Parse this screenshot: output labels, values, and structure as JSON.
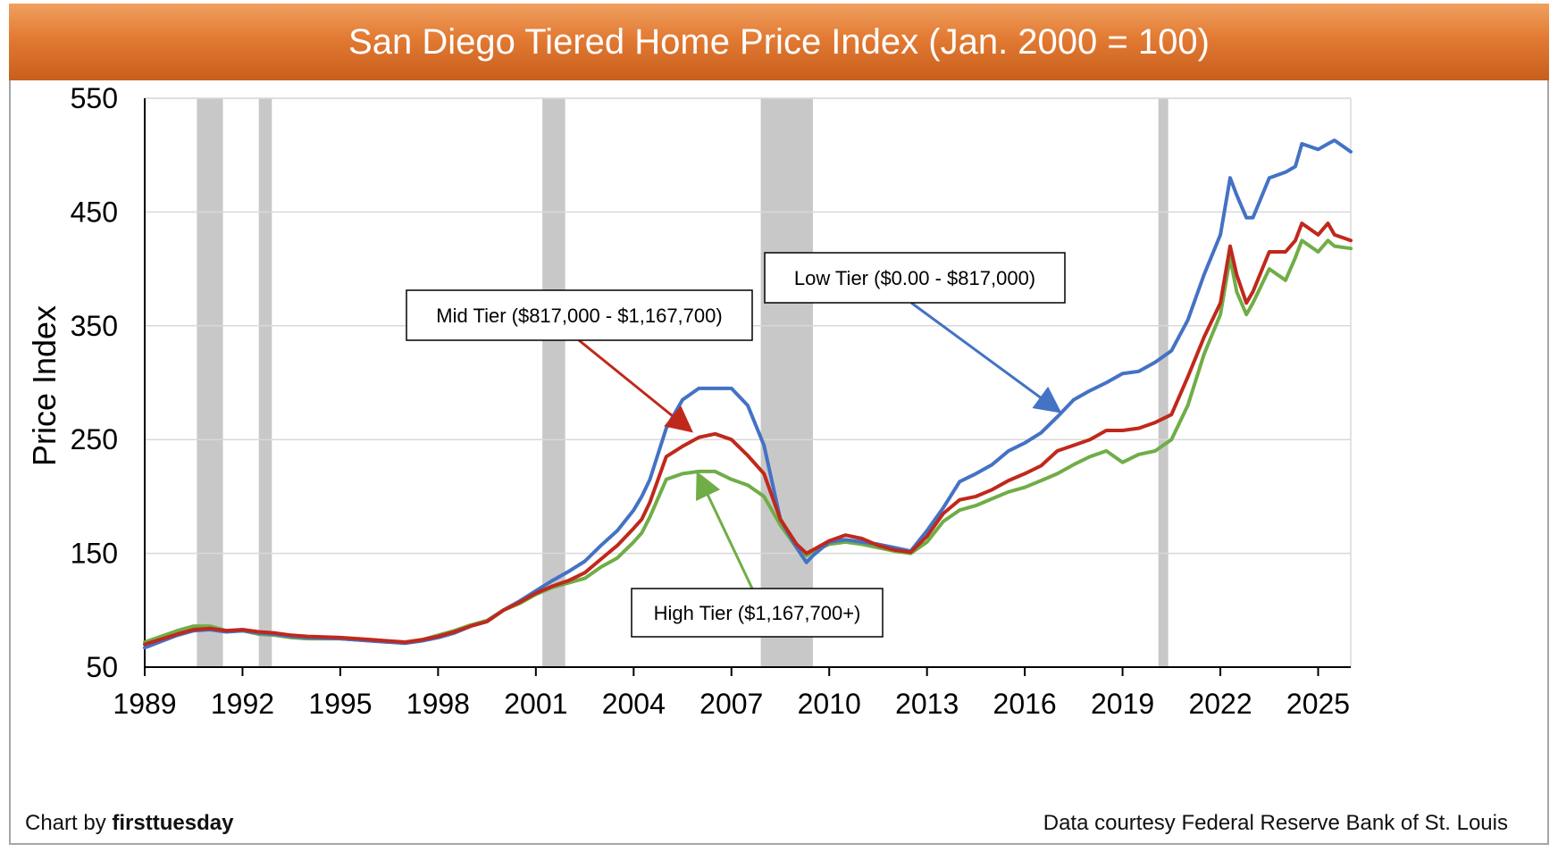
{
  "header": {
    "title": "San Diego Tiered Home Price Index (Jan. 2000 = 100)"
  },
  "credits": {
    "chart_by_prefix": "Chart by ",
    "chart_by_brand": "firsttuesday",
    "data_source": "Data courtesy Federal Reserve Bank of St. Louis"
  },
  "colors": {
    "low": "#4472c4",
    "mid": "#c0281c",
    "high": "#70ad47",
    "recession": "#c8c8c8",
    "grid": "#d9d9d9"
  },
  "chart_data": {
    "type": "line",
    "title": "San Diego Tiered Home Price Index (Jan. 2000 = 100)",
    "xlabel": "",
    "ylabel": "Price Index",
    "xlim": [
      1989,
      2026
    ],
    "ylim": [
      50,
      550
    ],
    "yticks": [
      50,
      150,
      250,
      350,
      450,
      550
    ],
    "xticks": [
      1989,
      1992,
      1995,
      1998,
      2001,
      2004,
      2007,
      2010,
      2013,
      2016,
      2019,
      2022,
      2025
    ],
    "grid": true,
    "recessions": [
      [
        1990.6,
        1991.4
      ],
      [
        1992.5,
        1992.9
      ],
      [
        2001.2,
        2001.9
      ],
      [
        2007.9,
        2009.5
      ],
      [
        2020.1,
        2020.4
      ]
    ],
    "annotations": [
      {
        "series": "Low Tier",
        "text": "Low Tier ($0.00 - $817,000)",
        "target": [
          2017.0,
          276
        ]
      },
      {
        "series": "Mid Tier",
        "text": "Mid Tier ($817,000 - $1,167,700)",
        "target": [
          2005.7,
          259
        ]
      },
      {
        "series": "High Tier",
        "text": "High Tier ($1,167,700+)",
        "target": [
          2006.0,
          218
        ]
      }
    ],
    "series": [
      {
        "key": "low",
        "x": [
          1989,
          1990,
          1990.5,
          1991,
          1991.5,
          1992,
          1992.5,
          1993,
          1993.5,
          1994,
          1995,
          1996,
          1996.5,
          1997,
          1997.5,
          1998,
          1998.5,
          1999,
          1999.5,
          2000,
          2000.5,
          2001,
          2001.5,
          2002,
          2002.5,
          2003,
          2003.5,
          2004,
          2004.25,
          2004.5,
          2005,
          2005.5,
          2006,
          2006.5,
          2007,
          2007.5,
          2008,
          2008.5,
          2009,
          2009.3,
          2009.5,
          2010,
          2010.5,
          2011,
          2011.5,
          2012,
          2012.5,
          2013,
          2013.5,
          2014,
          2014.5,
          2015,
          2015.5,
          2016,
          2016.5,
          2017,
          2017.5,
          2018,
          2018.5,
          2019,
          2019.5,
          2020,
          2020.5,
          2021,
          2021.5,
          2022,
          2022.3,
          2022.5,
          2022.8,
          2023,
          2023.5,
          2024,
          2024.3,
          2024.5,
          2025,
          2025.3,
          2025.5,
          2026
        ],
        "y": [
          67,
          78,
          82,
          83,
          81,
          82,
          80,
          79,
          77,
          76,
          75,
          73,
          72,
          71,
          73,
          76,
          80,
          86,
          90,
          100,
          108,
          117,
          126,
          134,
          143,
          157,
          170,
          188,
          200,
          215,
          260,
          285,
          295,
          295,
          295,
          280,
          245,
          180,
          155,
          142,
          148,
          160,
          162,
          160,
          158,
          155,
          152,
          170,
          190,
          213,
          220,
          228,
          240,
          247,
          256,
          270,
          285,
          293,
          300,
          308,
          310,
          318,
          328,
          355,
          395,
          430,
          480,
          465,
          445,
          445,
          480,
          485,
          490,
          510,
          505,
          510,
          513,
          503
        ]
      },
      {
        "key": "mid",
        "x": [
          1989,
          1990,
          1990.5,
          1991,
          1991.5,
          1992,
          1992.5,
          1993,
          1993.5,
          1994,
          1995,
          1996,
          1996.5,
          1997,
          1997.5,
          1998,
          1998.5,
          1999,
          1999.5,
          2000,
          2000.5,
          2001,
          2001.5,
          2002,
          2002.5,
          2003,
          2003.5,
          2004,
          2004.25,
          2004.5,
          2005,
          2005.5,
          2006,
          2006.5,
          2007,
          2007.5,
          2008,
          2008.5,
          2009,
          2009.3,
          2009.5,
          2010,
          2010.5,
          2011,
          2011.5,
          2012,
          2012.5,
          2013,
          2013.5,
          2014,
          2014.5,
          2015,
          2015.5,
          2016,
          2016.5,
          2017,
          2017.5,
          2018,
          2018.5,
          2019,
          2019.5,
          2020,
          2020.5,
          2021,
          2021.5,
          2022,
          2022.3,
          2022.5,
          2022.8,
          2023,
          2023.5,
          2024,
          2024.3,
          2024.5,
          2025,
          2025.3,
          2025.5,
          2026
        ],
        "y": [
          70,
          79,
          83,
          84,
          82,
          83,
          81,
          80,
          78,
          77,
          76,
          74,
          73,
          72,
          74,
          77,
          81,
          86,
          90,
          100,
          107,
          115,
          121,
          126,
          133,
          145,
          157,
          172,
          180,
          195,
          235,
          244,
          252,
          255,
          250,
          236,
          220,
          180,
          158,
          150,
          153,
          161,
          166,
          163,
          157,
          153,
          151,
          165,
          185,
          197,
          200,
          206,
          214,
          220,
          227,
          240,
          245,
          250,
          258,
          258,
          260,
          265,
          272,
          305,
          340,
          370,
          420,
          395,
          370,
          380,
          415,
          415,
          425,
          440,
          430,
          440,
          430,
          425
        ]
      },
      {
        "key": "high",
        "x": [
          1989,
          1990,
          1990.5,
          1991,
          1991.5,
          1992,
          1992.5,
          1993,
          1993.5,
          1994,
          1995,
          1996,
          1996.5,
          1997,
          1997.5,
          1998,
          1998.5,
          1999,
          1999.5,
          2000,
          2000.5,
          2001,
          2001.5,
          2002,
          2002.5,
          2003,
          2003.5,
          2004,
          2004.25,
          2004.5,
          2005,
          2005.5,
          2006,
          2006.5,
          2007,
          2007.5,
          2008,
          2008.5,
          2009,
          2009.3,
          2009.5,
          2010,
          2010.5,
          2011,
          2011.5,
          2012,
          2012.5,
          2013,
          2013.5,
          2014,
          2014.5,
          2015,
          2015.5,
          2016,
          2016.5,
          2017,
          2017.5,
          2018,
          2018.5,
          2019,
          2019.5,
          2020,
          2020.5,
          2021,
          2021.5,
          2022,
          2022.3,
          2022.5,
          2022.8,
          2023,
          2023.5,
          2024,
          2024.3,
          2024.5,
          2025,
          2025.3,
          2025.5,
          2026
        ],
        "y": [
          72,
          82,
          86,
          86,
          82,
          82,
          79,
          78,
          76,
          75,
          75,
          73,
          72,
          72,
          74,
          78,
          82,
          87,
          91,
          100,
          106,
          114,
          120,
          124,
          128,
          138,
          146,
          160,
          168,
          182,
          215,
          220,
          222,
          222,
          215,
          210,
          200,
          175,
          155,
          148,
          152,
          158,
          160,
          158,
          155,
          152,
          150,
          160,
          178,
          188,
          192,
          198,
          204,
          208,
          214,
          220,
          228,
          235,
          240,
          230,
          237,
          240,
          250,
          280,
          325,
          360,
          410,
          380,
          360,
          370,
          400,
          390,
          410,
          425,
          415,
          425,
          420,
          418
        ]
      }
    ]
  }
}
